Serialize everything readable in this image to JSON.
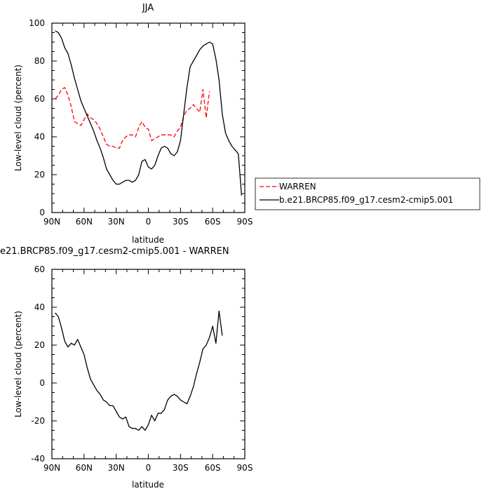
{
  "chart_data": [
    {
      "type": "line",
      "title": "JJA",
      "xlabel": "latitude",
      "ylabel": "Low-level cloud (percent)",
      "xlim": [
        90,
        -90
      ],
      "ylim": [
        0,
        100
      ],
      "x_ticks": [
        90,
        60,
        30,
        0,
        -30,
        -60,
        -90
      ],
      "x_tick_labels": [
        "90N",
        "60N",
        "30N",
        "0",
        "30S",
        "60S",
        "90S"
      ],
      "y_ticks": [
        0,
        20,
        40,
        60,
        80,
        100
      ],
      "y_tick_labels": [
        "0",
        "20",
        "40",
        "60",
        "80",
        "100"
      ],
      "legend_position": "right",
      "series": [
        {
          "name": "WARREN",
          "color": "#ff0000",
          "style": "dashed",
          "points": [
            [
              87,
              60
            ],
            [
              84,
              62
            ],
            [
              81,
              65
            ],
            [
              78,
              66
            ],
            [
              75,
              62
            ],
            [
              72,
              56
            ],
            [
              69,
              48
            ],
            [
              66,
              47
            ],
            [
              63,
              46
            ],
            [
              60,
              49
            ],
            [
              57,
              52
            ],
            [
              54,
              50
            ],
            [
              51,
              49
            ],
            [
              48,
              47
            ],
            [
              45,
              44
            ],
            [
              42,
              40
            ],
            [
              39,
              36
            ],
            [
              36,
              35
            ],
            [
              33,
              35
            ],
            [
              30,
              34
            ],
            [
              27,
              34
            ],
            [
              24,
              38
            ],
            [
              21,
              40
            ],
            [
              18,
              41
            ],
            [
              15,
              41
            ],
            [
              12,
              40
            ],
            [
              9,
              45
            ],
            [
              6,
              48
            ],
            [
              3,
              45
            ],
            [
              0,
              44
            ],
            [
              -3,
              38
            ],
            [
              -6,
              39
            ],
            [
              -9,
              40
            ],
            [
              -12,
              41
            ],
            [
              -15,
              41
            ],
            [
              -18,
              41
            ],
            [
              -21,
              41
            ],
            [
              -24,
              40
            ],
            [
              -27,
              43
            ],
            [
              -30,
              45
            ],
            [
              -33,
              51
            ],
            [
              -36,
              54
            ],
            [
              -39,
              55
            ],
            [
              -42,
              57
            ],
            [
              -45,
              55
            ],
            [
              -48,
              53
            ],
            [
              -51,
              65
            ],
            [
              -54,
              50
            ],
            [
              -57,
              64
            ]
          ]
        },
        {
          "name": "b.e21.BRCP85.f09_g17.cesm2-cmip5.001",
          "color": "#000000",
          "style": "solid",
          "points": [
            [
              87,
              96
            ],
            [
              84,
              95
            ],
            [
              81,
              92
            ],
            [
              78,
              87
            ],
            [
              75,
              84
            ],
            [
              72,
              78
            ],
            [
              69,
              71
            ],
            [
              66,
              65
            ],
            [
              63,
              59
            ],
            [
              60,
              55
            ],
            [
              57,
              51
            ],
            [
              54,
              47
            ],
            [
              51,
              43
            ],
            [
              48,
              38
            ],
            [
              45,
              34
            ],
            [
              42,
              29
            ],
            [
              39,
              23
            ],
            [
              36,
              20
            ],
            [
              33,
              17
            ],
            [
              30,
              15
            ],
            [
              27,
              15
            ],
            [
              24,
              16
            ],
            [
              21,
              17
            ],
            [
              18,
              17
            ],
            [
              15,
              16
            ],
            [
              12,
              17
            ],
            [
              9,
              20
            ],
            [
              6,
              27
            ],
            [
              3,
              28
            ],
            [
              0,
              24
            ],
            [
              -3,
              23
            ],
            [
              -6,
              25
            ],
            [
              -9,
              30
            ],
            [
              -12,
              34
            ],
            [
              -15,
              35
            ],
            [
              -18,
              34
            ],
            [
              -21,
              31
            ],
            [
              -24,
              30
            ],
            [
              -27,
              32
            ],
            [
              -30,
              38
            ],
            [
              -33,
              52
            ],
            [
              -36,
              66
            ],
            [
              -39,
              77
            ],
            [
              -42,
              80
            ],
            [
              -45,
              83
            ],
            [
              -48,
              86
            ],
            [
              -51,
              88
            ],
            [
              -54,
              89
            ],
            [
              -57,
              90
            ],
            [
              -60,
              89
            ],
            [
              -63,
              81
            ],
            [
              -66,
              70
            ],
            [
              -69,
              52
            ],
            [
              -72,
              42
            ],
            [
              -75,
              38
            ],
            [
              -78,
              35
            ],
            [
              -81,
              33
            ],
            [
              -84,
              31
            ],
            [
              -87,
              9
            ]
          ]
        }
      ]
    },
    {
      "type": "line",
      "title": "e21.BRCP85.f09_g17.cesm2-cmip5.001 - WARREN",
      "xlabel": "latitude",
      "ylabel": "Low-level cloud (percent)",
      "xlim": [
        90,
        -90
      ],
      "ylim": [
        -40,
        60
      ],
      "x_ticks": [
        90,
        60,
        30,
        0,
        -30,
        -60,
        -90
      ],
      "x_tick_labels": [
        "90N",
        "60N",
        "30N",
        "0",
        "30S",
        "60S",
        "90S"
      ],
      "y_ticks": [
        -40,
        -20,
        0,
        20,
        40,
        60
      ],
      "y_tick_labels": [
        "-40",
        "-20",
        "0",
        "20",
        "40",
        "60"
      ],
      "series": [
        {
          "color": "#000000",
          "style": "solid",
          "points": [
            [
              87,
              37
            ],
            [
              84,
              35
            ],
            [
              81,
              29
            ],
            [
              78,
              22
            ],
            [
              75,
              19
            ],
            [
              72,
              21
            ],
            [
              69,
              20
            ],
            [
              66,
              23
            ],
            [
              63,
              19
            ],
            [
              60,
              15
            ],
            [
              57,
              8
            ],
            [
              54,
              2
            ],
            [
              51,
              -1
            ],
            [
              48,
              -4
            ],
            [
              45,
              -6
            ],
            [
              42,
              -9
            ],
            [
              39,
              -10
            ],
            [
              36,
              -12
            ],
            [
              33,
              -12
            ],
            [
              30,
              -15
            ],
            [
              27,
              -18
            ],
            [
              24,
              -19
            ],
            [
              21,
              -18
            ],
            [
              18,
              -23
            ],
            [
              15,
              -24
            ],
            [
              12,
              -24
            ],
            [
              9,
              -25
            ],
            [
              6,
              -23
            ],
            [
              3,
              -25
            ],
            [
              0,
              -22
            ],
            [
              -3,
              -17
            ],
            [
              -6,
              -20
            ],
            [
              -9,
              -16
            ],
            [
              -12,
              -16
            ],
            [
              -15,
              -14
            ],
            [
              -18,
              -9
            ],
            [
              -21,
              -7
            ],
            [
              -24,
              -6
            ],
            [
              -27,
              -7
            ],
            [
              -30,
              -9
            ],
            [
              -33,
              -10
            ],
            [
              -36,
              -11
            ],
            [
              -39,
              -7
            ],
            [
              -42,
              -2
            ],
            [
              -45,
              5
            ],
            [
              -48,
              11
            ],
            [
              -51,
              18
            ],
            [
              -54,
              20
            ],
            [
              -57,
              24
            ],
            [
              -60,
              30
            ],
            [
              -63,
              21
            ],
            [
              -66,
              38
            ],
            [
              -69,
              25
            ]
          ]
        }
      ]
    }
  ]
}
